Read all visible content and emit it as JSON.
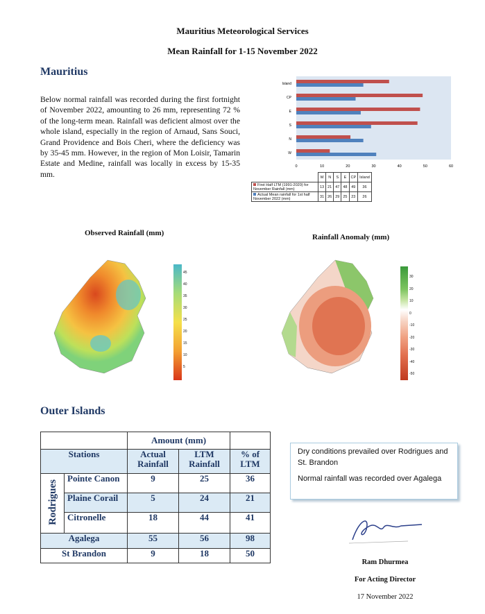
{
  "header": {
    "org": "Mauritius Meteorological Services",
    "title": "Mean Rainfall for 1-15 November 2022"
  },
  "mauritius": {
    "heading": "Mauritius",
    "text": "Below normal rainfall was recorded during the first fortnight of November 2022, amounting to 26 mm, representing 72 % of the long-term mean. Rainfall was deficient almost over the whole island, especially in the region of Arnaud, Sans Souci, Grand Providence and Bois Cheri, where the deficiency was by 35-45 mm. However, in the region of Mon Loisir, Tamarin Estate and Medine, rainfall was locally in excess by 15-35 mm."
  },
  "chart_data": {
    "type": "bar",
    "orientation": "horizontal",
    "categories": [
      "W",
      "N",
      "S",
      "E",
      "CP",
      "Island"
    ],
    "series": [
      {
        "name": "First Half LTM (1991-2020) for November Rainfall (mm)",
        "color": "#c0504d",
        "values": [
          13,
          21,
          47,
          48,
          49,
          36
        ]
      },
      {
        "name": "Actual Mean rainfall for 1st half November 2022 (mm)",
        "color": "#4f81bd",
        "values": [
          31,
          26,
          29,
          25,
          23,
          26
        ]
      }
    ],
    "xlim": [
      0,
      60
    ],
    "xticks": [
      "0",
      "10",
      "20",
      "30",
      "40",
      "50",
      "60"
    ]
  },
  "maps": {
    "observed_title": "Observed Rainfall (mm)",
    "observed_scale": [
      "45",
      "40",
      "35",
      "30",
      "25",
      "20",
      "15",
      "10",
      "5"
    ],
    "anomaly_title": "Rainfall Anomaly (mm)",
    "anomaly_scale": [
      "30",
      "20",
      "10",
      "0",
      "-10",
      "-20",
      "-30",
      "-40",
      "-50"
    ]
  },
  "outer": {
    "heading": "Outer Islands",
    "amount_header": "Amount (mm)",
    "col_stations": "Stations",
    "col_actual": "Actual Rainfall",
    "col_ltm": "LTM Rainfall",
    "col_pct": "% of LTM",
    "group": "Rodrigues",
    "rows": [
      {
        "station": "Pointe Canon",
        "actual": "9",
        "ltm": "25",
        "pct": "36"
      },
      {
        "station": "Plaine Corail",
        "actual": "5",
        "ltm": "24",
        "pct": "21"
      },
      {
        "station": "Citronelle",
        "actual": "18",
        "ltm": "44",
        "pct": "41"
      },
      {
        "station": "Agalega",
        "actual": "55",
        "ltm": "56",
        "pct": "98"
      },
      {
        "station": "St Brandon",
        "actual": "9",
        "ltm": "18",
        "pct": "50"
      }
    ]
  },
  "note": {
    "line1": "Dry conditions prevailed over Rodrigues and St. Brandon",
    "line2": "Normal rainfall was recorded over Agalega"
  },
  "signature": {
    "name": "Ram Dhurmea",
    "role": "For Acting Director",
    "date": "17 November 2022"
  }
}
